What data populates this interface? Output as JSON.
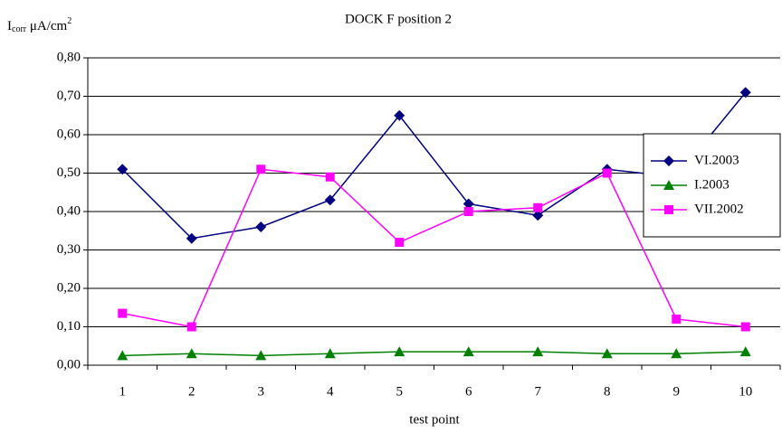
{
  "chart_data": {
    "type": "line",
    "title": "DOCK F position 2",
    "y_label": {
      "base": "I",
      "sub": "corr",
      "unit": " μA/cm",
      "sup": "2"
    },
    "x_label": "test point",
    "categories": [
      "1",
      "2",
      "3",
      "4",
      "5",
      "6",
      "7",
      "8",
      "9",
      "10"
    ],
    "series": [
      {
        "name": "VI.2003",
        "color": "#000080",
        "marker": "diamond",
        "values": [
          0.51,
          0.33,
          0.36,
          0.43,
          0.65,
          0.42,
          0.39,
          0.51,
          0.49,
          0.71
        ]
      },
      {
        "name": "I.2003",
        "color": "#008000",
        "marker": "triangle",
        "values": [
          0.025,
          0.03,
          0.025,
          0.03,
          0.035,
          0.035,
          0.035,
          0.03,
          0.03,
          0.035
        ]
      },
      {
        "name": "VII.2002",
        "color": "#ff00ff",
        "marker": "square",
        "values": [
          0.135,
          0.1,
          0.51,
          0.49,
          0.32,
          0.4,
          0.41,
          0.5,
          0.12,
          0.1
        ]
      }
    ],
    "ylim": [
      0,
      0.8
    ],
    "yticks": [
      {
        "value": 0,
        "label": "0,00"
      },
      {
        "value": 0.1,
        "label": "0,10"
      },
      {
        "value": 0.2,
        "label": "0,20"
      },
      {
        "value": 0.3,
        "label": "0,30"
      },
      {
        "value": 0.4,
        "label": "0,40"
      },
      {
        "value": 0.5,
        "label": "0,50"
      },
      {
        "value": 0.6,
        "label": "0,60"
      },
      {
        "value": 0.7,
        "label": "0,70"
      },
      {
        "value": 0.8,
        "label": "0,80"
      }
    ],
    "grid": true,
    "legend": "right"
  }
}
